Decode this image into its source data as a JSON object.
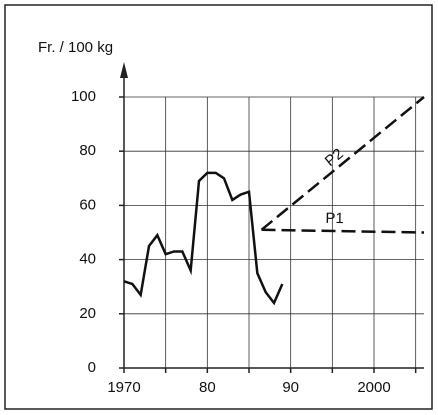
{
  "chart_data": {
    "type": "line",
    "y_label": "Fr. / 100 kg",
    "xlim": [
      1970,
      2006
    ],
    "ylim": [
      0,
      100
    ],
    "xticks": [
      1970,
      {
        "value": 1975,
        "label": null
      },
      {
        "value": 1980,
        "label": "80"
      },
      {
        "value": 1985,
        "label": null
      },
      {
        "value": 1990,
        "label": "90"
      },
      {
        "value": 1995,
        "label": null
      },
      2000,
      {
        "value": 2005,
        "label": null
      }
    ],
    "yticks": [
      0,
      20,
      40,
      60,
      80,
      100
    ],
    "grid": true,
    "series": [
      {
        "color": "#111111",
        "dashed": false,
        "x": [
          1970,
          1971,
          1972,
          1973,
          1974,
          1975,
          1976,
          1977,
          1978,
          1979,
          1980,
          1981,
          1982,
          1983,
          1984,
          1985,
          1986,
          1987,
          1988,
          1989
        ],
        "values": [
          32,
          31,
          27,
          45,
          49,
          42,
          43,
          43,
          36,
          69,
          72,
          72,
          70,
          62,
          64,
          65,
          35,
          28,
          24,
          31
        ]
      },
      {
        "name": "P2",
        "color": "#111111",
        "dashed": true,
        "x": [
          1986.5,
          2006
        ],
        "values": [
          51,
          100
        ]
      },
      {
        "name": "P1",
        "color": "#111111",
        "dashed": true,
        "x": [
          1986.5,
          2006
        ],
        "values": [
          51,
          50
        ]
      }
    ]
  }
}
